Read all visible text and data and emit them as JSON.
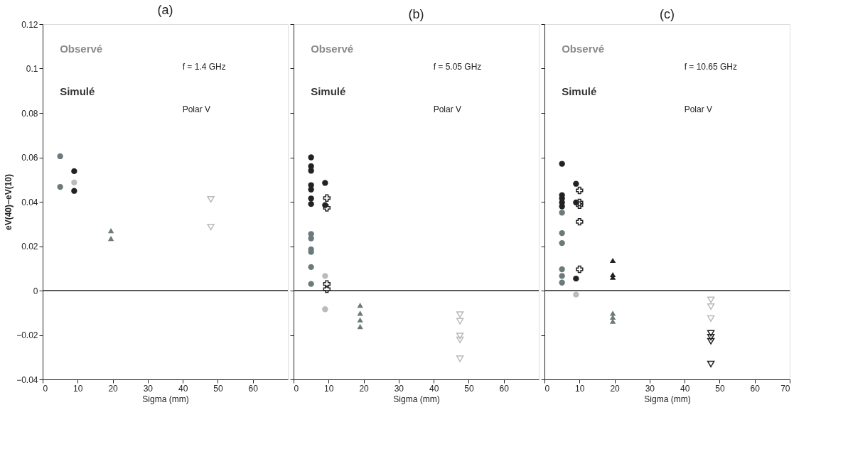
{
  "chart_data": [
    {
      "type": "scatter",
      "title": "(a)",
      "xlabel": "Sigma (mm)",
      "ylabel": "eV(40)−eV(10)",
      "xlim": [
        0,
        70
      ],
      "xticks": [
        0,
        10,
        20,
        30,
        40,
        50,
        60
      ],
      "ylim": [
        -0.04,
        0.12
      ],
      "yticks": [
        -0.04,
        -0.02,
        0,
        0.02,
        0.04,
        0.06,
        0.08,
        0.1,
        0.12
      ],
      "grid": false,
      "ref_lines": [
        {
          "axis": "y",
          "value": 0,
          "color": "#222222"
        }
      ],
      "annotations": [
        "Observé",
        "f = 1.4 GHz",
        "Simulé",
        "Polar V"
      ],
      "series": [
        {
          "color": "#6b7b7b",
          "marker": "circle",
          "x": [
            5,
            5
          ],
          "values": [
            0.0605,
            0.0467
          ]
        },
        {
          "color": "#222222",
          "marker": "circle",
          "x": [
            9,
            9
          ],
          "values": [
            0.0538,
            0.0449
          ]
        },
        {
          "color": "#bbbbbb",
          "marker": "circle",
          "x": [
            9
          ],
          "values": [
            0.0487
          ]
        },
        {
          "color": "#6b7b7b",
          "marker": "triangle",
          "x": [
            19.5,
            19.5
          ],
          "values": [
            0.027,
            0.0235
          ]
        },
        {
          "color": "#bbbbbb",
          "marker": "triangle-down",
          "x": [
            48,
            48
          ],
          "values": [
            0.0411,
            0.0286
          ]
        }
      ]
    },
    {
      "type": "scatter",
      "title": "(b)",
      "xlabel": "Sigma (mm)",
      "xlim": [
        0,
        70
      ],
      "xticks": [
        0,
        10,
        20,
        30,
        40,
        50,
        60
      ],
      "ylim": [
        -0.04,
        0.12
      ],
      "yticks": [
        -0.04,
        -0.02,
        0,
        0.02,
        0.04,
        0.06,
        0.08,
        0.1,
        0.12
      ],
      "tick_labels": "x",
      "grid": false,
      "ref_lines": [
        {
          "axis": "y",
          "value": 0,
          "color": "#222222"
        }
      ],
      "annotations": [
        "Observé",
        "f = 5.05 GHz",
        "Simulé",
        "Polar V"
      ],
      "series": [
        {
          "color": "#222222",
          "marker": "circle",
          "x": [
            5,
            5,
            5,
            5,
            5,
            5,
            5
          ],
          "values": [
            0.06,
            0.056,
            0.054,
            0.0475,
            0.0455,
            0.0415,
            0.039
          ]
        },
        {
          "color": "#6b7b7b",
          "marker": "circle",
          "x": [
            5,
            5,
            5,
            5,
            5,
            5
          ],
          "values": [
            0.0255,
            0.0235,
            0.0186,
            0.0174,
            0.0106,
            0.003
          ]
        },
        {
          "color": "#222222",
          "marker": "circle",
          "x": [
            9,
            9
          ],
          "values": [
            0.0485,
            0.0385
          ]
        },
        {
          "color": "#bbbbbb",
          "marker": "circle",
          "x": [
            9,
            9
          ],
          "values": [
            0.0066,
            -0.0084
          ]
        },
        {
          "color": "#222222",
          "marker": "cross",
          "x": [
            9.5,
            9.5,
            9.5,
            9.5
          ],
          "values": [
            0.0417,
            0.0373,
            0.003,
            0.0006
          ]
        },
        {
          "color": "#6b7b7b",
          "marker": "triangle",
          "x": [
            19,
            19,
            19,
            19
          ],
          "values": [
            -0.0066,
            -0.0102,
            -0.0132,
            -0.0162
          ]
        },
        {
          "color": "#bbbbbb",
          "marker": "triangle-down",
          "x": [
            47.5,
            47.5,
            47.5,
            47.5,
            47.5
          ],
          "values": [
            -0.0108,
            -0.0138,
            -0.0204,
            -0.0222,
            -0.0307
          ]
        }
      ]
    },
    {
      "type": "scatter",
      "title": "(c)",
      "xlabel": "Sigma (mm)",
      "xlim": [
        0,
        70
      ],
      "xticks": [
        0,
        10,
        20,
        30,
        40,
        50,
        60,
        70
      ],
      "ylim": [
        -0.04,
        0.12
      ],
      "yticks": [
        -0.04,
        -0.02,
        0,
        0.02,
        0.04,
        0.06,
        0.08,
        0.1,
        0.12
      ],
      "tick_labels": "x",
      "grid": false,
      "ref_lines": [
        {
          "axis": "y",
          "value": 0,
          "color": "#222222"
        }
      ],
      "annotations": [
        "Observé",
        "f = 10.65 GHz",
        "Simulé",
        "Polar V"
      ],
      "series": [
        {
          "color": "#222222",
          "marker": "circle",
          "x": [
            5,
            5,
            5,
            5,
            5
          ],
          "values": [
            0.0571,
            0.043,
            0.0415,
            0.0397,
            0.0379
          ]
        },
        {
          "color": "#6b7b7b",
          "marker": "circle",
          "x": [
            5,
            5,
            5,
            5,
            5,
            5
          ],
          "values": [
            0.0351,
            0.0259,
            0.0214,
            0.0096,
            0.0066,
            0.0036
          ]
        },
        {
          "color": "#222222",
          "marker": "circle",
          "x": [
            9,
            9,
            9
          ],
          "values": [
            0.0481,
            0.0397,
            0.0054
          ]
        },
        {
          "color": "#bbbbbb",
          "marker": "circle",
          "x": [
            9
          ],
          "values": [
            -0.0018
          ]
        },
        {
          "color": "#222222",
          "marker": "cross",
          "x": [
            10,
            10,
            10,
            10,
            10
          ],
          "values": [
            0.0451,
            0.0397,
            0.0385,
            0.031,
            0.0096
          ]
        },
        {
          "color": "#222222",
          "marker": "triangle",
          "x": [
            19.5,
            19.5,
            19.5
          ],
          "values": [
            0.0136,
            0.0072,
            0.006
          ]
        },
        {
          "color": "#6b7b7b",
          "marker": "triangle",
          "x": [
            19.5,
            19.5,
            19.5
          ],
          "values": [
            -0.0102,
            -0.012,
            -0.0138
          ]
        },
        {
          "color": "#bbbbbb",
          "marker": "triangle-down",
          "x": [
            47.5,
            47.5,
            47.5
          ],
          "values": [
            -0.0042,
            -0.0072,
            -0.0126
          ]
        },
        {
          "color": "#222222",
          "marker": "triangle-down",
          "x": [
            47.5,
            47.5,
            47.5,
            47.5
          ],
          "values": [
            -0.0192,
            -0.021,
            -0.0228,
            -0.0331
          ]
        }
      ]
    }
  ]
}
